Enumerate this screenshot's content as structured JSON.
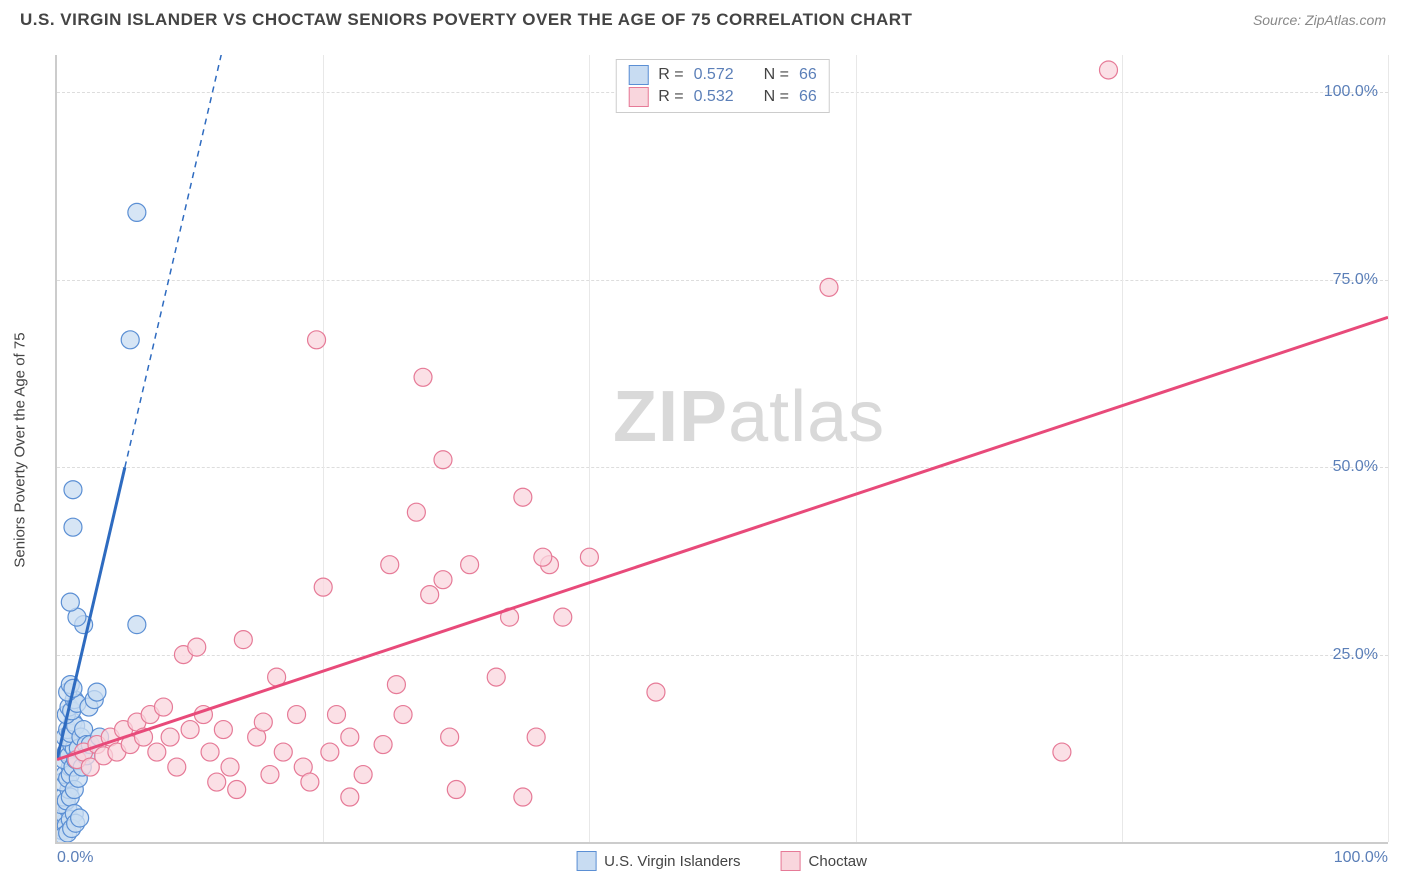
{
  "header": {
    "title": "U.S. VIRGIN ISLANDER VS CHOCTAW SENIORS POVERTY OVER THE AGE OF 75 CORRELATION CHART",
    "source_label": "Source: ZipAtlas.com"
  },
  "chart": {
    "type": "scatter",
    "watermark_a": "ZIP",
    "watermark_b": "atlas",
    "ylabel": "Seniors Poverty Over the Age of 75",
    "xlim": [
      0,
      100
    ],
    "ylim": [
      0,
      105
    ],
    "yticks": [
      {
        "v": 25,
        "label": "25.0%"
      },
      {
        "v": 50,
        "label": "50.0%"
      },
      {
        "v": 75,
        "label": "75.0%"
      },
      {
        "v": 100,
        "label": "100.0%"
      }
    ],
    "xticks": [
      {
        "v": 0,
        "label": "0.0%"
      },
      {
        "v": 100,
        "label": "100.0%"
      }
    ],
    "vgrid": [
      20,
      40,
      60,
      80,
      100
    ],
    "background_color": "#ffffff",
    "grid_color": "#dddddd",
    "axis_color": "#cccccc",
    "marker_radius": 9,
    "marker_stroke_width": 1.2,
    "series": [
      {
        "name": "U.S. Virgin Islanders",
        "fill": "#c8dcf2",
        "stroke": "#5b8fd4",
        "line_color": "#2e6bc0",
        "R_label": "R =",
        "R": "0.572",
        "N_label": "N =",
        "N": "66",
        "trend": {
          "x1": 0,
          "y1": 11,
          "x2": 5.1,
          "y2": 50,
          "dash_to_x": 17.2,
          "dash_to_y": 142
        },
        "points": [
          [
            0.2,
            2
          ],
          [
            0.3,
            3
          ],
          [
            0.5,
            2.5
          ],
          [
            0.4,
            4
          ],
          [
            0.6,
            3.5
          ],
          [
            0.8,
            4.5
          ],
          [
            0.3,
            5
          ],
          [
            0.5,
            6
          ],
          [
            0.7,
            5.5
          ],
          [
            0.9,
            7
          ],
          [
            0.4,
            8
          ],
          [
            0.6,
            9
          ],
          [
            0.8,
            8.5
          ],
          [
            1.0,
            10
          ],
          [
            0.5,
            11
          ],
          [
            0.7,
            12
          ],
          [
            0.9,
            11.5
          ],
          [
            1.1,
            13
          ],
          [
            1.3,
            12.5
          ],
          [
            0.6,
            14
          ],
          [
            0.8,
            15
          ],
          [
            1.0,
            14.5
          ],
          [
            1.2,
            16
          ],
          [
            1.4,
            15.5
          ],
          [
            0.7,
            17
          ],
          [
            0.9,
            18
          ],
          [
            1.1,
            17.5
          ],
          [
            1.3,
            19
          ],
          [
            1.5,
            18.5
          ],
          [
            0.8,
            20
          ],
          [
            1.0,
            21
          ],
          [
            1.2,
            20.5
          ],
          [
            1.0,
            9
          ],
          [
            1.2,
            10
          ],
          [
            1.4,
            11
          ],
          [
            1.6,
            12.5
          ],
          [
            1.8,
            14
          ],
          [
            2.0,
            15
          ],
          [
            2.2,
            13
          ],
          [
            1.0,
            6
          ],
          [
            1.3,
            7
          ],
          [
            1.6,
            8.5
          ],
          [
            1.9,
            10
          ],
          [
            2.2,
            11.5
          ],
          [
            2.5,
            13
          ],
          [
            0.4,
            1.5
          ],
          [
            0.7,
            2.2
          ],
          [
            1.0,
            3.0
          ],
          [
            1.3,
            3.8
          ],
          [
            0.5,
            0.8
          ],
          [
            0.8,
            1.2
          ],
          [
            1.1,
            1.8
          ],
          [
            1.4,
            2.5
          ],
          [
            1.7,
            3.2
          ],
          [
            3.2,
            14
          ],
          [
            2.0,
            29
          ],
          [
            6.0,
            29
          ],
          [
            1.5,
            30
          ],
          [
            1.0,
            32
          ],
          [
            1.2,
            42
          ],
          [
            1.2,
            47
          ],
          [
            5.5,
            67
          ],
          [
            6.0,
            84
          ],
          [
            2.4,
            18
          ],
          [
            2.8,
            19
          ],
          [
            3.0,
            20
          ]
        ]
      },
      {
        "name": "Choctaw",
        "fill": "#f9d6dd",
        "stroke": "#e67a97",
        "line_color": "#e84a7a",
        "R_label": "R =",
        "R": "0.532",
        "N_label": "N =",
        "N": "66",
        "trend": {
          "x1": 0,
          "y1": 11,
          "x2": 100,
          "y2": 70
        },
        "points": [
          [
            1.5,
            11
          ],
          [
            2.0,
            12
          ],
          [
            2.5,
            10
          ],
          [
            3.0,
            13
          ],
          [
            3.5,
            11.5
          ],
          [
            4.0,
            14
          ],
          [
            4.5,
            12
          ],
          [
            5.0,
            15
          ],
          [
            5.5,
            13
          ],
          [
            6.0,
            16
          ],
          [
            6.5,
            14
          ],
          [
            7.0,
            17
          ],
          [
            7.5,
            12
          ],
          [
            8.0,
            18
          ],
          [
            8.5,
            14
          ],
          [
            9.0,
            10
          ],
          [
            9.5,
            25
          ],
          [
            10.0,
            15
          ],
          [
            10.5,
            26
          ],
          [
            11.0,
            17
          ],
          [
            11.5,
            12
          ],
          [
            12.0,
            8
          ],
          [
            12.5,
            15
          ],
          [
            13.0,
            10
          ],
          [
            13.5,
            7
          ],
          [
            14.0,
            27
          ],
          [
            15.0,
            14
          ],
          [
            15.5,
            16
          ],
          [
            16.0,
            9
          ],
          [
            16.5,
            22
          ],
          [
            17.0,
            12
          ],
          [
            18.0,
            17
          ],
          [
            18.5,
            10
          ],
          [
            19.0,
            8
          ],
          [
            20.0,
            34
          ],
          [
            20.5,
            12
          ],
          [
            21.0,
            17
          ],
          [
            22.0,
            14
          ],
          [
            23.0,
            9
          ],
          [
            25.0,
            37
          ],
          [
            25.5,
            21
          ],
          [
            26.0,
            17
          ],
          [
            27.0,
            44
          ],
          [
            28.0,
            33
          ],
          [
            29.0,
            35
          ],
          [
            29.5,
            14
          ],
          [
            31.0,
            37
          ],
          [
            33.0,
            22
          ],
          [
            34.0,
            30
          ],
          [
            35.0,
            46
          ],
          [
            36.0,
            14
          ],
          [
            37.0,
            37
          ],
          [
            35.0,
            6
          ],
          [
            36.5,
            38
          ],
          [
            38.0,
            30
          ],
          [
            40.0,
            38
          ],
          [
            45.0,
            20
          ],
          [
            19.5,
            67
          ],
          [
            27.5,
            62
          ],
          [
            29.0,
            51
          ],
          [
            58.0,
            74
          ],
          [
            75.5,
            12
          ],
          [
            79.0,
            103
          ],
          [
            22.0,
            6
          ],
          [
            24.5,
            13
          ],
          [
            30.0,
            7
          ]
        ]
      }
    ]
  }
}
